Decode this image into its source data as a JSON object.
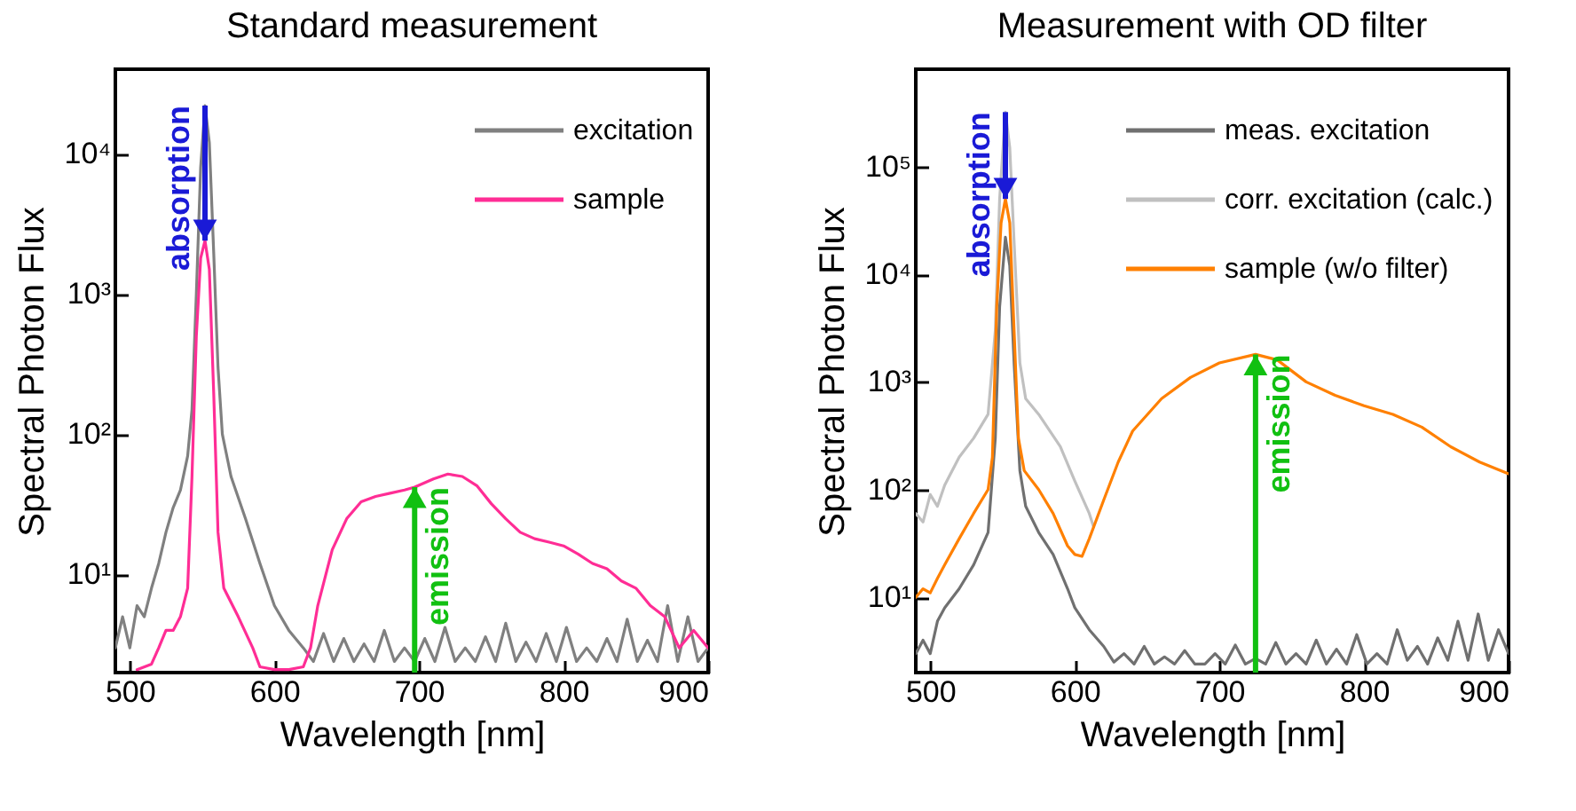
{
  "chart_data": [
    {
      "type": "line",
      "title": "Standard measurement",
      "xlabel": "Wavelength [nm]",
      "ylabel": "Spectral Photon Flux",
      "log": "y",
      "legend": "top right",
      "xlim": [
        490,
        900
      ],
      "xticks": [
        500,
        600,
        700,
        800,
        900
      ],
      "ylim": [
        2,
        40000
      ],
      "yticks": [
        {
          "value": 10,
          "label": "10¹"
        },
        {
          "value": 100,
          "label": "10²"
        },
        {
          "value": 1000,
          "label": "10³"
        },
        {
          "value": 10000,
          "label": "10⁴"
        }
      ],
      "annotations": [
        {
          "text": "absorption",
          "x": 552,
          "y": 2400
        },
        {
          "text": "emission",
          "x": 697,
          "y": 42
        }
      ],
      "series": [
        {
          "name": "excitation",
          "color": "#808080",
          "x": [
            490,
            495,
            500,
            505,
            510,
            515,
            520,
            525,
            530,
            535,
            540,
            543,
            546,
            549,
            552,
            555,
            558,
            561,
            564,
            570,
            580,
            590,
            600,
            610,
            620,
            627,
            634,
            641,
            648,
            655,
            662,
            669,
            676,
            683,
            690,
            697,
            704,
            711,
            718,
            725,
            732,
            739,
            746,
            753,
            760,
            767,
            774,
            781,
            788,
            795,
            802,
            809,
            816,
            823,
            830,
            837,
            844,
            851,
            858,
            865,
            872,
            879,
            886,
            893,
            900
          ],
          "values": [
            3,
            5,
            3,
            6,
            5,
            8,
            12,
            20,
            30,
            40,
            70,
            150,
            1000,
            8000,
            22000,
            12000,
            2000,
            300,
            100,
            50,
            25,
            12,
            6,
            4,
            3,
            2.4,
            3.8,
            2.4,
            3.5,
            2.4,
            3.2,
            2.4,
            4,
            2.4,
            3,
            2.4,
            3.5,
            2.4,
            4.2,
            2.4,
            3,
            2.4,
            3.6,
            2.4,
            4.5,
            2.4,
            3.3,
            2.4,
            3.8,
            2.4,
            4.2,
            2.4,
            3,
            2.4,
            3.5,
            2.4,
            4.8,
            2.4,
            3.4,
            2.4,
            6,
            2.4,
            5,
            2.4,
            3
          ]
        },
        {
          "name": "sample",
          "color": "#ff2d95",
          "x": [
            505,
            515,
            520,
            525,
            530,
            535,
            540,
            543,
            546,
            549,
            552,
            555,
            558,
            561,
            565,
            575,
            585,
            590,
            600,
            610,
            620,
            625,
            630,
            640,
            650,
            660,
            670,
            680,
            690,
            697,
            710,
            720,
            730,
            740,
            750,
            760,
            770,
            780,
            790,
            800,
            810,
            820,
            830,
            840,
            850,
            860,
            870,
            880,
            890,
            900
          ],
          "values": [
            2.1,
            2.3,
            3,
            4,
            4,
            5,
            8,
            50,
            500,
            1800,
            2400,
            1500,
            200,
            20,
            8,
            5,
            3,
            2.2,
            2.1,
            2.1,
            2.2,
            3,
            6,
            15,
            25,
            33,
            36,
            38,
            40,
            42,
            48,
            52,
            50,
            43,
            32,
            25,
            20,
            18,
            17,
            16,
            14,
            12,
            11,
            9,
            8,
            6,
            5,
            3,
            4,
            3
          ]
        }
      ]
    },
    {
      "type": "line",
      "title": "Measurement with OD filter",
      "xlabel": "Wavelength [nm]",
      "ylabel": "Spectral Photon Flux",
      "log": "y",
      "legend": "top right",
      "xlim": [
        490,
        900
      ],
      "xticks": [
        500,
        600,
        700,
        800,
        900
      ],
      "ylim": [
        2,
        800000
      ],
      "yticks": [
        {
          "value": 10,
          "label": "10¹"
        },
        {
          "value": 100,
          "label": "10²"
        },
        {
          "value": 1000,
          "label": "10³"
        },
        {
          "value": 10000,
          "label": "10⁴"
        },
        {
          "value": 100000,
          "label": "10⁵"
        }
      ],
      "annotations": [
        {
          "text": "absorption",
          "x": 552,
          "y": 50000
        },
        {
          "text": "emission",
          "x": 725,
          "y": 1800
        }
      ],
      "series": [
        {
          "name": "meas. excitation",
          "color": "#707070",
          "x": [
            490,
            495,
            500,
            505,
            510,
            520,
            530,
            540,
            545,
            548,
            552,
            555,
            558,
            562,
            566,
            575,
            585,
            595,
            600,
            610,
            620,
            627,
            634,
            641,
            648,
            655,
            662,
            669,
            676,
            683,
            690,
            697,
            704,
            711,
            718,
            725,
            732,
            739,
            746,
            753,
            760,
            767,
            774,
            781,
            788,
            795,
            802,
            809,
            816,
            823,
            830,
            837,
            844,
            851,
            858,
            865,
            872,
            879,
            886,
            893,
            900
          ],
          "values": [
            3,
            4,
            3,
            6,
            8,
            12,
            20,
            40,
            300,
            5000,
            22000,
            12000,
            1500,
            150,
            70,
            40,
            25,
            12,
            8,
            5,
            3.5,
            2.5,
            3,
            2.4,
            3.5,
            2.4,
            2.8,
            2.4,
            3.2,
            2.4,
            2.4,
            3,
            2.4,
            3.6,
            2.4,
            2.7,
            2.4,
            3.8,
            2.4,
            3,
            2.4,
            4,
            2.4,
            3.3,
            2.4,
            4.5,
            2.4,
            3,
            2.4,
            5,
            2.6,
            3.5,
            2.4,
            4.2,
            2.6,
            6,
            2.6,
            7,
            2.6,
            5,
            3
          ]
        },
        {
          "name": "corr. excitation (calc.)",
          "color": "#c0c0c0",
          "x": [
            490,
            495,
            500,
            505,
            510,
            520,
            530,
            540,
            545,
            548,
            552,
            555,
            558,
            562,
            566,
            575,
            590,
            600,
            610,
            613
          ],
          "values": [
            60,
            50,
            90,
            70,
            110,
            200,
            300,
            500,
            3000,
            50000,
            320000,
            150000,
            20000,
            1500,
            700,
            500,
            250,
            120,
            60,
            45
          ]
        },
        {
          "name": "sample (w/o filter)",
          "color": "#ff8000",
          "x": [
            490,
            495,
            500,
            505,
            510,
            520,
            530,
            540,
            543,
            546,
            549,
            552,
            555,
            558,
            561,
            565,
            575,
            585,
            595,
            600,
            605,
            610,
            620,
            630,
            640,
            660,
            680,
            700,
            725,
            740,
            760,
            780,
            800,
            820,
            840,
            860,
            880,
            900
          ],
          "values": [
            10,
            12,
            11,
            15,
            20,
            35,
            60,
            100,
            200,
            5000,
            30000,
            50000,
            30000,
            3000,
            300,
            150,
            100,
            60,
            30,
            25,
            24,
            35,
            80,
            180,
            350,
            700,
            1100,
            1500,
            1800,
            1600,
            1000,
            750,
            600,
            500,
            380,
            250,
            180,
            140
          ]
        }
      ]
    }
  ]
}
